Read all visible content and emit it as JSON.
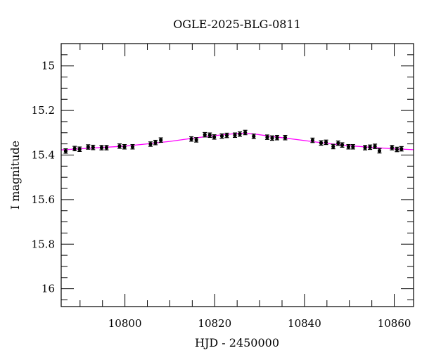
{
  "chart_data": {
    "type": "scatter",
    "title": "OGLE-2025-BLG-0811",
    "xlabel": "HJD - 2450000",
    "ylabel": "I magnitude",
    "xlim": [
      10785.8,
      10864.3
    ],
    "ylim": [
      16.08,
      14.9
    ],
    "y_inverted": true,
    "grid": false,
    "x_ticks": [
      10800,
      10820,
      10840,
      10860
    ],
    "x_tick_labels": [
      "10800",
      "10820",
      "10840",
      "10860"
    ],
    "x_minor_step": 5,
    "y_ticks": [
      15,
      15.2,
      15.4,
      15.6,
      15.8,
      16
    ],
    "y_tick_labels": [
      "15",
      "15.2",
      "15.4",
      "15.6",
      "15.8",
      "16"
    ],
    "y_minor_step": 0.05,
    "colors": {
      "points": "#000000",
      "errorbar_halo": "#999999",
      "model": "#ff00ff"
    },
    "series": [
      {
        "type": "scatter",
        "error": 0.01,
        "x": [
          10786.8,
          10788.8,
          10789.9,
          10791.8,
          10792.9,
          10794.8,
          10795.9,
          10798.8,
          10799.9,
          10801.7,
          10805.7,
          10806.8,
          10808.0,
          10814.8,
          10815.9,
          10817.8,
          10818.9,
          10819.9,
          10821.6,
          10822.7,
          10824.5,
          10825.6,
          10826.8,
          10828.7,
          10831.7,
          10832.8,
          10833.9,
          10835.7,
          10841.8,
          10843.7,
          10844.8,
          10846.4,
          10847.5,
          10848.4,
          10849.8,
          10850.8,
          10853.5,
          10854.6,
          10855.7,
          10856.7,
          10859.5,
          10860.6,
          10861.6
        ],
        "y": [
          15.382,
          15.371,
          15.374,
          15.364,
          15.366,
          15.367,
          15.367,
          15.36,
          15.363,
          15.363,
          15.351,
          15.344,
          15.333,
          15.328,
          15.332,
          15.309,
          15.311,
          15.319,
          15.315,
          15.312,
          15.311,
          15.306,
          15.299,
          15.316,
          15.32,
          15.324,
          15.322,
          15.322,
          15.334,
          15.346,
          15.343,
          15.362,
          15.347,
          15.355,
          15.363,
          15.363,
          15.367,
          15.365,
          15.361,
          15.381,
          15.367,
          15.375,
          15.372
        ]
      },
      {
        "type": "line",
        "x": [
          10785.8,
          10795,
          10800,
          10805,
          10810,
          10815,
          10820,
          10824,
          10826.5,
          10829,
          10832,
          10835,
          10840,
          10845,
          10850,
          10855,
          10860,
          10864.3
        ],
        "y": [
          15.377,
          15.366,
          15.36,
          15.35,
          15.339,
          15.325,
          15.313,
          15.305,
          15.302,
          15.306,
          15.315,
          15.322,
          15.335,
          15.348,
          15.358,
          15.366,
          15.372,
          15.376
        ]
      }
    ]
  }
}
